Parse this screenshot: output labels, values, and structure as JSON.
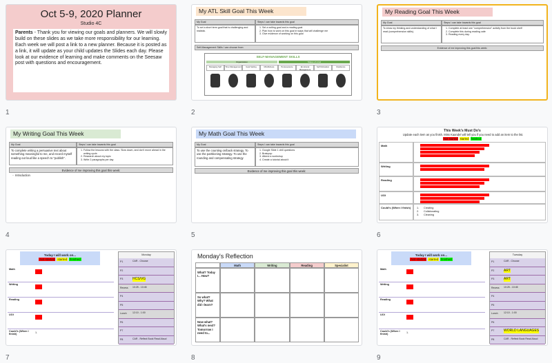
{
  "slides": [
    {
      "number": "1",
      "title": "Oct 5-9, 2020 Planner",
      "subtitle": "Studio 4C",
      "body_lead": "Parents",
      "body": "- Thank you for viewing our goals and planners. We will slowly build on these slides as we take more responsibility for our learning. Each week we will post a link to a new planner. Because it is posted as a link, it will update as your child updates the Slides each day. Please look at our evidence of learning and make comments on the Seesaw post with questions and encouragement."
    },
    {
      "number": "2",
      "title": "My ATL Skill Goal This Week",
      "goal_header": "My Goal",
      "steps_header": "Steps I can take towards this goal",
      "goal": "To set a short term goal that is challenging and realistic.",
      "steps": [
        "Set a writing goal and a reading goal",
        "Plan how to work on this goal in ways that will challenge me",
        "Give evidence of working on this goal"
      ],
      "skills_label": "Self-Management Skills I can choose from:",
      "skills_title": "SELF-MANAGEMENT SKILLS",
      "skills_groups": [
        "Organization",
        "States of mind"
      ],
      "skills": [
        "Managing Self",
        "Time Management",
        "Goal Setting",
        "Mindfulness",
        "Perseverance",
        "Emotional Management",
        "Self Motivation",
        "Resilience"
      ]
    },
    {
      "number": "3",
      "title": "My Reading Goal This Week",
      "goal_header": "My Goal",
      "steps_header": "Steps I can take towards this goal",
      "goal": "To show my thinking and understanding of what I read (comprehension skills).",
      "steps": [
        "Complete at least one \"comprehension\" activity from the book shelf",
        "Complete this during reading cafe",
        "Reading every day."
      ],
      "evidence": "Evidence of me improving this goal this week:"
    },
    {
      "number": "4",
      "title": "My Writing Goal This Week",
      "goal_header": "My Goal",
      "steps_header": "Steps I can take towards this goal",
      "goal": "To complete writing a persuasive text about something meaningful to me, and record myself reading out loud like a speech to \"publish\".",
      "steps": [
        "Follow the lessons with the class. Slow down, and don't move ahead in the writing cycle.",
        "Research about my topic",
        "Write 2 paragraphs per day"
      ],
      "evidence": "Evidence of me improving this goal this week:",
      "evidence_items": [
        "Introduction"
      ]
    },
    {
      "number": "5",
      "title": "My Math Goal This Week",
      "goal_header": "My Goal",
      "steps_header": "Steps I can take towards this goal",
      "goal": "To use the counting on/back strategy. To use the partitioning strategy. To use the rounding and compensating strategy",
      "steps": [
        "Google Slide 1 chill questions",
        "Brainpop",
        "Attend a workshop",
        "Create a tutorial about it"
      ],
      "evidence": "Evidence of me improving this goal this week:"
    },
    {
      "number": "6",
      "title": "This Week's Must Do's",
      "instructions": "Update each item as you finish. Miss Kaandel will tell you if you need to add an item to the list.",
      "status": [
        "Not started",
        "started",
        "finished"
      ],
      "rows": [
        "Math",
        "Writing",
        "Reading",
        "UOI",
        "Could's (When I finish)"
      ],
      "coulds": [
        "Creating",
        "Collaborating",
        "Cleaning"
      ]
    },
    {
      "number": "7",
      "heading": "Today I will work on...",
      "status": [
        "Not started",
        "started",
        "finished"
      ],
      "rows": [
        "Math",
        "Writing",
        "Reading",
        "UOI",
        "Could's (When I finish)"
      ],
      "could_item": "1.",
      "day": "Monday",
      "schedule": [
        {
          "period": "P1",
          "text": "CAR - Choose"
        },
        {
          "period": "P2"
        },
        {
          "period": "P3",
          "text": "HCS/VG",
          "highlight": "#ffff00"
        },
        {
          "period": "Recess",
          "text": "10:25 - 10:45"
        },
        {
          "period": "P4"
        },
        {
          "period": "P5"
        },
        {
          "period": "Lunch",
          "text": "12:10 - 1:00"
        },
        {
          "period": "P6"
        },
        {
          "period": "P7"
        },
        {
          "period": "P8",
          "text": "CAR - Reflect Book Read Aloud"
        }
      ]
    },
    {
      "number": "8",
      "title": "Monday's Reflection",
      "columns": [
        "Math",
        "Writing",
        "Reading",
        "Specialist"
      ],
      "rows": [
        "What? Today I... How?",
        "So what? Why? What did I learn?",
        "Now what? What's next? Tomorrow I need to..."
      ]
    },
    {
      "number": "9",
      "heading": "Today I will work on...",
      "status": [
        "Not started",
        "started",
        "finished"
      ],
      "rows": [
        "Math",
        "Writing",
        "Reading",
        "UOI",
        "Could's (When I finish)"
      ],
      "could_item": "1.",
      "day": "Tuesday",
      "schedule": [
        {
          "period": "P1",
          "text": "CAR - Choose"
        },
        {
          "period": "P2",
          "text": "ART",
          "highlight": "#ffff00"
        },
        {
          "period": "P3",
          "text": "ART",
          "highlight": "#ffff00"
        },
        {
          "period": "Recess",
          "text": "10:25 - 10:45"
        },
        {
          "period": "P4"
        },
        {
          "period": "P5"
        },
        {
          "period": "Lunch",
          "text": "12:10 - 1:00"
        },
        {
          "period": "P6"
        },
        {
          "period": "P7",
          "text": "WORLD LANGUAGES",
          "highlight": "#ffff00"
        },
        {
          "period": "P8",
          "text": "CAR - Reflect Book Read Aloud"
        }
      ]
    }
  ]
}
